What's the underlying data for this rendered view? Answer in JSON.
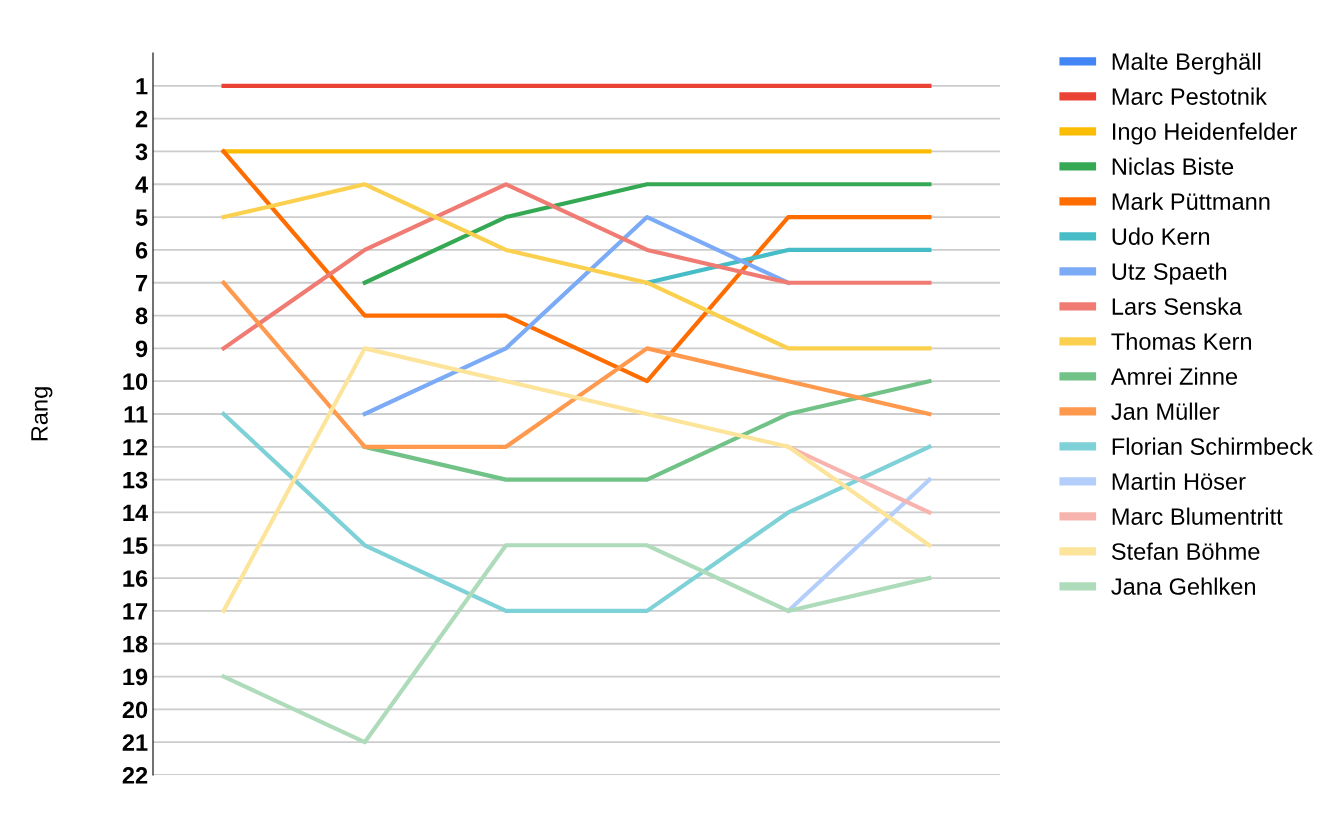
{
  "chart_data": {
    "type": "line",
    "ylabel": "Rang",
    "categories": [
      null,
      null,
      null,
      null,
      null,
      null
    ],
    "series": [
      {
        "name": "Malte Berghäll",
        "color": "#4285f4",
        "values": [
          null,
          null,
          null,
          null,
          null,
          null
        ]
      },
      {
        "name": "Marc Pestotnik",
        "color": "#ea4335",
        "values": [
          1,
          1,
          1,
          1,
          1,
          1
        ]
      },
      {
        "name": "Ingo Heidenfelder",
        "color": "#fbbc04",
        "values": [
          3,
          3,
          3,
          3,
          3,
          3
        ]
      },
      {
        "name": "Niclas Biste",
        "color": "#34a853",
        "values": [
          null,
          7,
          5,
          4,
          4,
          4
        ]
      },
      {
        "name": "Mark Püttmann",
        "color": "#ff6d01",
        "values": [
          3,
          8,
          8,
          10,
          5,
          5
        ]
      },
      {
        "name": "Udo Kern",
        "color": "#46bdc6",
        "values": [
          null,
          null,
          null,
          7,
          6,
          6
        ]
      },
      {
        "name": "Utz Spaeth",
        "color": "#7baaf7",
        "values": [
          null,
          11,
          9,
          5,
          7,
          null
        ]
      },
      {
        "name": "Lars Senska",
        "color": "#f07b72",
        "values": [
          9,
          6,
          4,
          6,
          7,
          7
        ]
      },
      {
        "name": "Thomas Kern",
        "color": "#fcd04f",
        "values": [
          5,
          4,
          6,
          7,
          9,
          9
        ]
      },
      {
        "name": "Amrei Zinne",
        "color": "#71c287",
        "values": [
          null,
          12,
          13,
          13,
          11,
          10
        ]
      },
      {
        "name": "Jan Müller",
        "color": "#ff994d",
        "values": [
          7,
          12,
          12,
          9,
          10,
          11
        ]
      },
      {
        "name": "Florian Schirmbeck",
        "color": "#7ed1d7",
        "values": [
          11,
          15,
          17,
          17,
          14,
          12
        ]
      },
      {
        "name": "Martin Höser",
        "color": "#b3cefb",
        "values": [
          null,
          null,
          null,
          null,
          17,
          13
        ]
      },
      {
        "name": "Marc Blumentritt",
        "color": "#f7b4ae",
        "values": [
          null,
          null,
          null,
          null,
          12,
          14
        ]
      },
      {
        "name": "Stefan Böhme",
        "color": "#fde49b",
        "values": [
          17,
          9,
          10,
          11,
          12,
          15
        ]
      },
      {
        "name": "Jana Gehlken",
        "color": "#aedcba",
        "values": [
          19,
          21,
          15,
          15,
          17,
          16
        ]
      }
    ],
    "ylim": [
      22,
      0
    ],
    "yticks": [
      1,
      2,
      3,
      4,
      5,
      6,
      7,
      8,
      9,
      10,
      11,
      12,
      13,
      14,
      15,
      16,
      17,
      18,
      19,
      20,
      21,
      22
    ],
    "grid": "y",
    "legend": "right",
    "marker": "none",
    "line_style": "solid",
    "tick_labels": "y"
  }
}
